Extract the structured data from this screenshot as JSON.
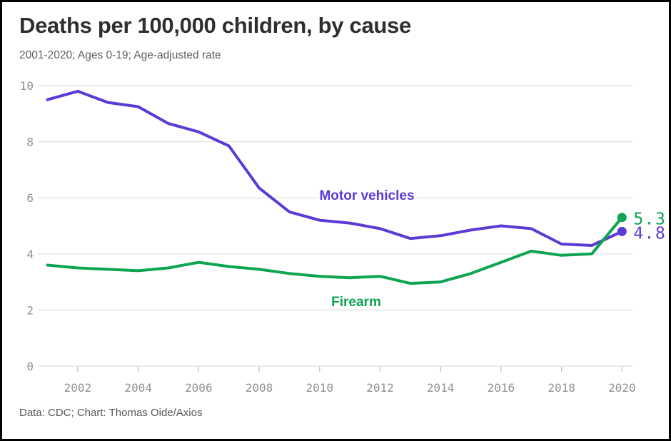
{
  "header": {
    "title": "Deaths per 100,000 children, by cause",
    "subtitle": "2001-2020; Ages 0-19; Age-adjusted rate"
  },
  "footer": {
    "source_line": "Data: CDC; Chart: Thomas Oide/Axios"
  },
  "colors": {
    "motor_vehicles": "#5b3ad6",
    "firearm": "#0da452",
    "gridline": "#dedede",
    "tick": "#c4c4c4",
    "axis_text": "#919191",
    "background": "#ffffff"
  },
  "chart_data": {
    "type": "line",
    "title": "Deaths per 100,000 children, by cause",
    "subtitle": "2001-2020; Ages 0-19; Age-adjusted rate",
    "xlabel": "",
    "ylabel": "",
    "x": [
      2001,
      2002,
      2003,
      2004,
      2005,
      2006,
      2007,
      2008,
      2009,
      2010,
      2011,
      2012,
      2013,
      2014,
      2015,
      2016,
      2017,
      2018,
      2019,
      2020
    ],
    "xticks": [
      2002,
      2004,
      2006,
      2008,
      2010,
      2012,
      2014,
      2016,
      2018,
      2020
    ],
    "ylim": [
      0,
      10
    ],
    "yticks": [
      0,
      2,
      4,
      6,
      8,
      10
    ],
    "grid": "horizontal",
    "legend": "inline-labels",
    "series": [
      {
        "name": "Motor vehicles",
        "label": "Motor vehicles",
        "color": "#5b3ad6",
        "end_label": "4.8",
        "values": [
          9.5,
          9.8,
          9.4,
          9.25,
          8.65,
          8.35,
          7.85,
          6.35,
          5.5,
          5.2,
          5.1,
          4.9,
          4.55,
          4.65,
          4.85,
          5.0,
          4.9,
          4.35,
          4.3,
          4.8
        ]
      },
      {
        "name": "Firearm",
        "label": "Firearm",
        "color": "#0da452",
        "end_label": "5.3",
        "values": [
          3.6,
          3.5,
          3.45,
          3.4,
          3.5,
          3.7,
          3.55,
          3.45,
          3.3,
          3.2,
          3.15,
          3.2,
          2.95,
          3.0,
          3.3,
          3.7,
          4.1,
          3.95,
          4.0,
          5.3
        ]
      }
    ]
  }
}
